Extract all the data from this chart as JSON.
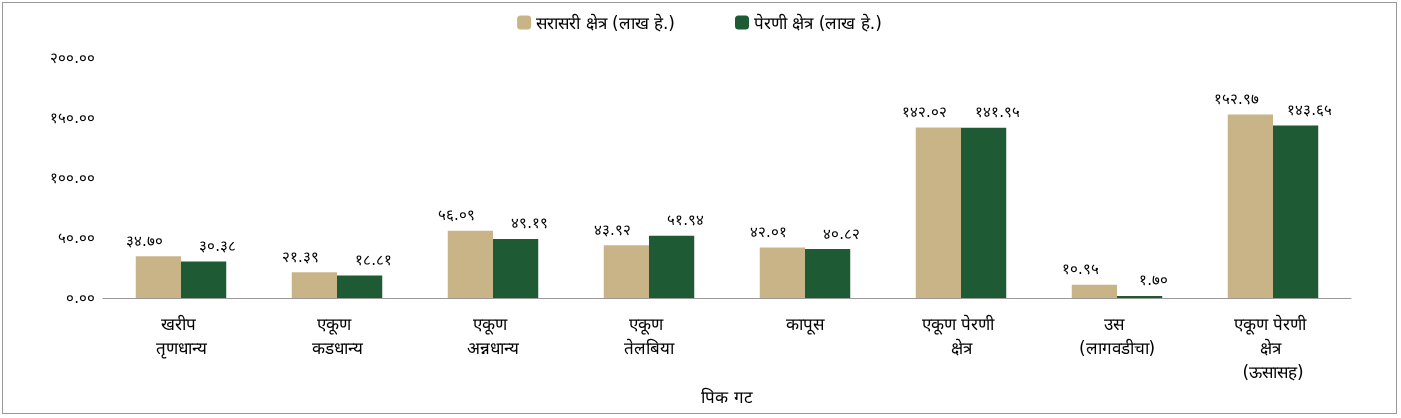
{
  "chart_data": {
    "type": "bar",
    "xlabel": "पिक गट",
    "legend": "top",
    "grid": false,
    "categories": [
      "खरीप तृणधान्य",
      "एकूण कडधान्य",
      "एकूण अन्नधान्य",
      "एकूण तेलबिया",
      "कापूस",
      "एकूण पेरणी क्षेत्र",
      "उस (लागवडीचा)",
      "एकूण पेरणी क्षेत्र (ऊसासह)"
    ],
    "series": [
      {
        "name": "सरासरी क्षेत्र (लाख हे.)",
        "color": "#c9b488",
        "values": [
          34.7,
          21.39,
          56.09,
          43.92,
          42.01,
          142.02,
          10.95,
          152.97
        ],
        "value_labels": [
          "३४.७०",
          "२१.३९",
          "५६.०९",
          "४३.९२",
          "४२.०१",
          "१४२.०२",
          "१०.९५",
          "१५२.९७"
        ]
      },
      {
        "name": "पेरणी क्षेत्र (लाख हे.)",
        "color": "#1e5a34",
        "values": [
          30.38,
          18.81,
          49.19,
          51.94,
          40.82,
          141.95,
          1.7,
          143.65
        ],
        "value_labels": [
          "३०.३८",
          "१८.८१",
          "४९.१९",
          "५१.९४",
          "४०.८२",
          "१४१.९५",
          "१.७०",
          "१४३.६५"
        ]
      }
    ],
    "ylim": [
      0,
      200
    ],
    "yticks": [
      {
        "value": 0,
        "label": "०.००"
      },
      {
        "value": 50,
        "label": "५०.००"
      },
      {
        "value": 100,
        "label": "१००.००"
      },
      {
        "value": 150,
        "label": "१५०.००"
      },
      {
        "value": 200,
        "label": "२००.००"
      }
    ]
  }
}
